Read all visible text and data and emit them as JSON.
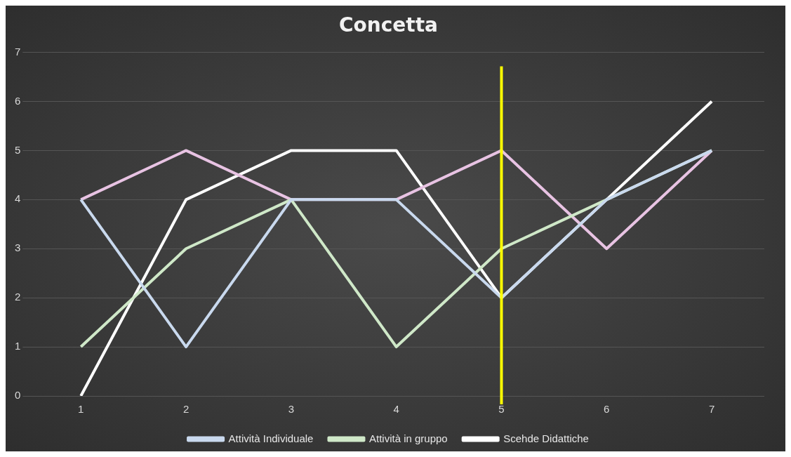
{
  "chart_data": {
    "type": "line",
    "title": "Concetta",
    "categories": [
      "1",
      "2",
      "3",
      "4",
      "5",
      "6",
      "7"
    ],
    "series": [
      {
        "name": "Attività Individuale",
        "color": "#c9d9ee",
        "values": [
          4,
          1,
          4,
          4,
          2,
          4,
          5
        ]
      },
      {
        "name": "Attività in gruppo",
        "color": "#cfe8c8",
        "values": [
          1,
          3,
          4,
          1,
          3,
          4,
          5
        ]
      },
      {
        "color": "#e8c3e3",
        "values": [
          4,
          5,
          4,
          4,
          5,
          3,
          5
        ]
      },
      {
        "name": "Scehde Didattiche",
        "color": "#ffffff",
        "values": [
          0,
          4,
          5,
          5,
          2,
          4,
          6
        ]
      }
    ],
    "ylim": [
      0,
      7
    ],
    "yticks": [
      0,
      1,
      2,
      3,
      4,
      5,
      6,
      7
    ],
    "grid": "y",
    "legend": "bottom",
    "marker": "none",
    "line_style": "solid",
    "ref_lines": [
      {
        "axis": "x",
        "value": "5",
        "color": "#ffff00"
      }
    ]
  }
}
